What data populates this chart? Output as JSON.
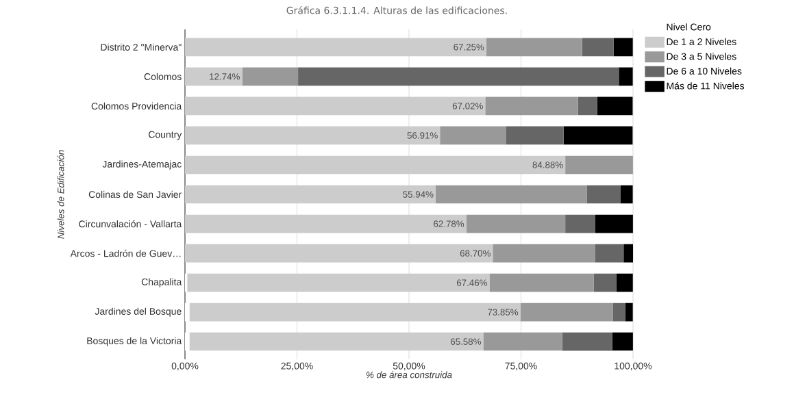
{
  "chart_data": {
    "type": "bar",
    "orientation": "horizontal",
    "stacked": true,
    "title": "Gráfica 6.3.1.1.4. Alturas de las edificaciones.",
    "xlabel": "% de área construida",
    "ylabel": "Niveles de Edificación",
    "categories": [
      "Distrito 2 \"Minerva\"",
      "Colomos",
      "Colomos Providencia",
      "Country",
      "Jardines-Atemajac",
      "Colinas de San Javier",
      "Circunvalación - Vallarta",
      "Arcos - Ladrón de Guev…",
      "Chapalita",
      "Jardines del Bosque",
      "Bosques de la Victoria"
    ],
    "series": [
      {
        "name": "Nivel Cero",
        "color": "#ffffff",
        "values": [
          0,
          0,
          0,
          0,
          0,
          0,
          0,
          0,
          0.5,
          1,
          1
        ]
      },
      {
        "name": "De 1 a 2 Niveles",
        "color": "#cccccc",
        "values": [
          67.25,
          12.74,
          67.02,
          56.91,
          84.88,
          55.94,
          62.78,
          68.7,
          67.46,
          73.85,
          65.58
        ],
        "value_labels": [
          "67.25%",
          "12.74%",
          "67.02%",
          "56.91%",
          "84.88%",
          "55.94%",
          "62.78%",
          "68.70%",
          "67.46%",
          "73.85%",
          "65.58%"
        ]
      },
      {
        "name": "De 3 a 5 Niveles",
        "color": "#999999",
        "values": [
          21.4,
          12.5,
          20.7,
          14.8,
          15.1,
          33.8,
          22.1,
          22.8,
          23.3,
          20.7,
          17.6
        ]
      },
      {
        "name": "De 6 a 10 Niveles",
        "color": "#666666",
        "values": [
          7,
          71.6,
          4.3,
          12.8,
          0,
          7.5,
          6.7,
          6.4,
          5.0,
          2.7,
          11.2
        ]
      },
      {
        "name": "Más de 11 Niveles",
        "color": "#000000",
        "values": [
          4.3,
          3.1,
          7.9,
          15.4,
          0,
          2.7,
          8.4,
          2.1,
          3.7,
          1.7,
          4.6
        ]
      }
    ],
    "xlim": [
      0,
      100
    ],
    "xticks": [
      {
        "value": 0,
        "label": "0,00%"
      },
      {
        "value": 25,
        "label": "25,00%"
      },
      {
        "value": 50,
        "label": "50,00%"
      },
      {
        "value": 75,
        "label": "75,00%"
      },
      {
        "value": 100,
        "label": "100,00%"
      }
    ],
    "grid": "x",
    "legend": "top right"
  }
}
